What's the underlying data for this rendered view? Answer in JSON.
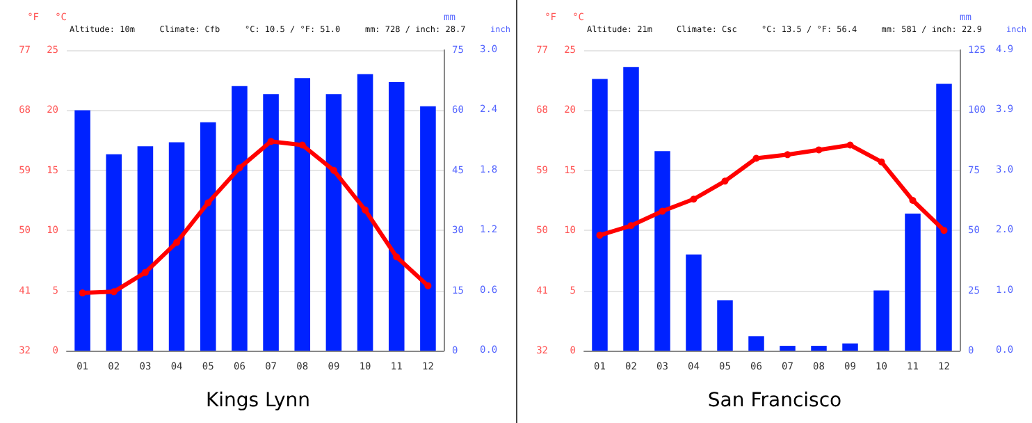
{
  "chart_data": [
    {
      "type": "bar",
      "title": "Kings Lynn",
      "ylabel": "°C",
      "y2label": "mm",
      "y3label": "°F",
      "annotations": [
        "Altitude: 10m",
        "Climate: Cfb",
        "°C: 10.5 / °F: 51.0",
        "mm: 728 / inch: 28.7",
        "inch",
        "3.0",
        "2.4",
        "1.8",
        "1.2",
        "0.6",
        "0.0"
      ],
      "categories": [
        "01",
        "02",
        "03",
        "04",
        "05",
        "06",
        "07",
        "08",
        "09",
        "10",
        "11",
        "12"
      ],
      "series": [
        {
          "axis": "y2",
          "color": "#0022ff",
          "values": [
            60,
            49,
            51,
            52,
            57,
            66,
            64,
            68,
            64,
            69,
            67,
            61
          ]
        },
        {
          "type": "line",
          "axis": "y",
          "color": "#ff0000",
          "values": [
            4.8,
            4.9,
            6.5,
            9.0,
            12.3,
            15.2,
            17.4,
            17.1,
            15.0,
            11.7,
            7.8,
            5.4
          ]
        }
      ],
      "ylim": [
        0,
        25
      ],
      "yticks": [
        0,
        5,
        10,
        15,
        20,
        25
      ],
      "y2lim": [
        0,
        75
      ],
      "y2ticks": [
        0,
        15,
        30,
        45,
        60,
        75
      ],
      "y3lim": [
        32,
        77
      ],
      "y3ticks": [
        32,
        41,
        50,
        59,
        68,
        77
      ],
      "grid": "y",
      "marker": "circle"
    },
    {
      "type": "bar",
      "title": "San Francisco",
      "ylabel": "°C",
      "y2label": "mm",
      "y3label": "°F",
      "annotations": [
        "Altitude: 21m",
        "Climate: Csc",
        "°C: 13.5 / °F: 56.4",
        "mm: 581 / inch: 22.9",
        "inch",
        "4.9",
        "3.9",
        "3.0",
        "2.0",
        "1.0",
        "0.0"
      ],
      "categories": [
        "01",
        "02",
        "03",
        "04",
        "05",
        "06",
        "07",
        "08",
        "09",
        "10",
        "11",
        "12"
      ],
      "series": [
        {
          "axis": "y2",
          "color": "#0022ff",
          "values": [
            113,
            118,
            83,
            40,
            21,
            6,
            2,
            2,
            3,
            25,
            57,
            111
          ]
        },
        {
          "type": "line",
          "axis": "y",
          "color": "#ff0000",
          "values": [
            9.6,
            10.4,
            11.6,
            12.6,
            14.1,
            16.0,
            16.3,
            16.7,
            17.1,
            15.7,
            12.5,
            10.0
          ]
        }
      ],
      "ylim": [
        0,
        25
      ],
      "yticks": [
        0,
        5,
        10,
        15,
        20,
        25
      ],
      "y2lim": [
        0,
        125
      ],
      "y2ticks": [
        0,
        25,
        50,
        75,
        100,
        125
      ],
      "y3lim": [
        32,
        77
      ],
      "y3ticks": [
        32,
        41,
        50,
        59,
        68,
        77
      ],
      "grid": "y",
      "marker": "circle"
    }
  ]
}
